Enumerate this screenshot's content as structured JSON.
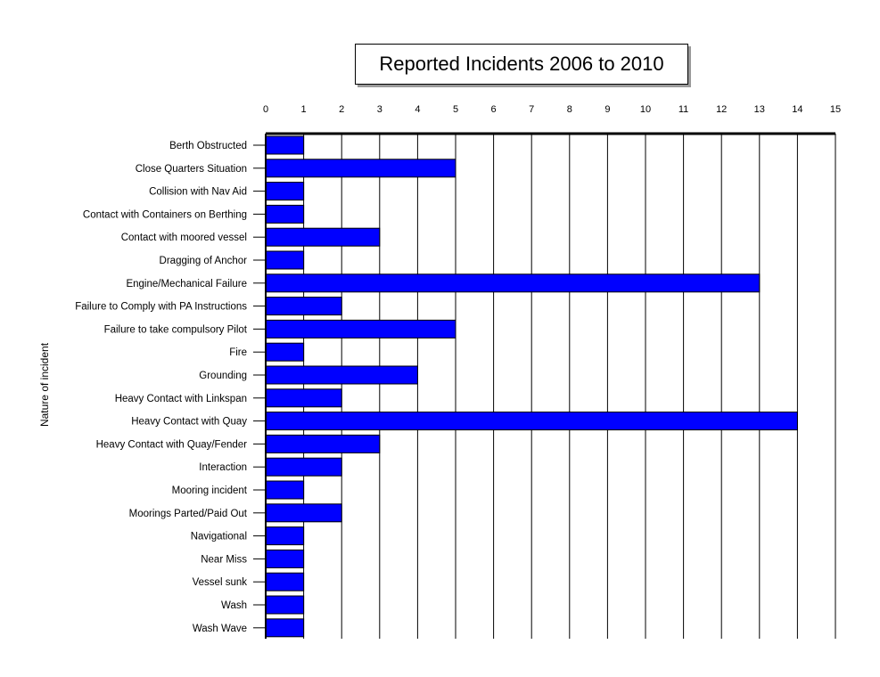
{
  "chart_data": {
    "type": "bar",
    "orientation": "horizontal",
    "title": "Reported Incidents 2006 to 2010",
    "xlabel": "",
    "ylabel": "Nature of incident",
    "xlim": [
      0,
      15
    ],
    "x_ticks": [
      "0",
      "1",
      "2",
      "3",
      "4",
      "5",
      "6",
      "7",
      "8",
      "9",
      "10",
      "11",
      "12",
      "13",
      "14",
      "15"
    ],
    "x_axis_position": "top",
    "grid": true,
    "bar_color": "#0000ff",
    "categories": [
      "Berth Obstructed",
      "Close Quarters Situation",
      "Collision with Nav Aid",
      "Contact with Containers on Berthing",
      "Contact with moored vessel",
      "Dragging of Anchor",
      "Engine/Mechanical Failure",
      "Failure to Comply with PA Instructions",
      "Failure to take compulsory  Pilot",
      "Fire",
      "Grounding",
      "Heavy Contact with Linkspan",
      "Heavy Contact with Quay",
      "Heavy Contact with Quay/Fender",
      "Interaction",
      "Mooring incident",
      "Moorings Parted/Paid Out",
      "Navigational",
      "Near Miss",
      "Vessel sunk",
      "Wash",
      "Wash Wave"
    ],
    "values": [
      1,
      5,
      1,
      1,
      3,
      1,
      13,
      2,
      5,
      1,
      4,
      2,
      14,
      3,
      2,
      1,
      2,
      1,
      1,
      1,
      1,
      1
    ]
  }
}
